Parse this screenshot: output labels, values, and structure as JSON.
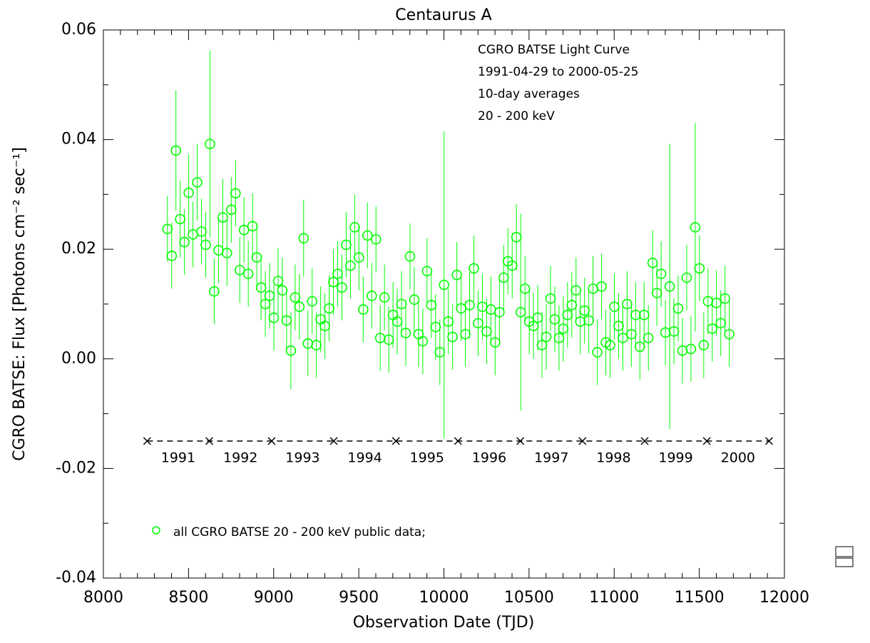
{
  "chart_data": {
    "type": "scatter",
    "title": "Centaurus A",
    "xlabel": "Observation Date (TJD)",
    "ylabel": "CGRO BATSE: Flux [Photons cm⁻² sec⁻¹]",
    "annotations": [
      "CGRO BATSE Light Curve",
      "1991-04-29 to 2000-05-25",
      "10-day averages",
      "20 - 200 keV"
    ],
    "xlim": [
      8000,
      12000
    ],
    "ylim": [
      -0.04,
      0.06
    ],
    "xticks": [
      8000,
      8500,
      9000,
      9500,
      10000,
      10500,
      11000,
      11500,
      12000
    ],
    "yticks": [
      -0.04,
      -0.02,
      {
        "value": 0,
        "label": "0.00"
      },
      0.02,
      0.04,
      0.06
    ],
    "xminorticks": [
      8100,
      8200,
      8300,
      8400,
      8600,
      8700,
      8800,
      8900,
      9100,
      9200,
      9300,
      9400,
      9600,
      9700,
      9800,
      9900,
      10100,
      10200,
      10300,
      10400,
      10600,
      10700,
      10800,
      10900,
      11100,
      11200,
      11300,
      11400,
      11600,
      11700,
      11800,
      11900
    ],
    "yminorticks": [
      -0.03,
      -0.01,
      0.01,
      0.03,
      0.05
    ],
    "year_level": -0.015,
    "year_boundaries": [
      8257,
      8622,
      8988,
      9353,
      9718,
      10083,
      10449,
      10814,
      11179,
      11544,
      11910
    ],
    "years": [
      "1991",
      "1992",
      "1993",
      "1994",
      "1995",
      "1996",
      "1997",
      "1998",
      "1999",
      "2000"
    ],
    "series": [
      {
        "name": "all CGRO BATSE 20 - 200 keV public data;",
        "color": "#00ff00",
        "x": [
          8376,
          8401,
          8426,
          8451,
          8476,
          8501,
          8526,
          8551,
          8576,
          8601,
          8626,
          8651,
          8676,
          8701,
          8726,
          8751,
          8776,
          8801,
          8826,
          8851,
          8876,
          8901,
          8926,
          8951,
          8976,
          9001,
          9026,
          9051,
          9076,
          9101,
          9126,
          9151,
          9176,
          9201,
          9226,
          9251,
          9276,
          9301,
          9326,
          9351,
          9376,
          9401,
          9426,
          9451,
          9476,
          9501,
          9526,
          9551,
          9576,
          9601,
          9626,
          9651,
          9676,
          9701,
          9726,
          9751,
          9776,
          9801,
          9826,
          9851,
          9876,
          9901,
          9926,
          9951,
          9976,
          10001,
          10026,
          10051,
          10076,
          10101,
          10126,
          10151,
          10176,
          10201,
          10226,
          10251,
          10276,
          10301,
          10326,
          10351,
          10376,
          10401,
          10426,
          10451,
          10476,
          10501,
          10526,
          10551,
          10576,
          10601,
          10626,
          10651,
          10676,
          10701,
          10726,
          10751,
          10776,
          10801,
          10826,
          10851,
          10876,
          10901,
          10926,
          10951,
          10976,
          11001,
          11026,
          11051,
          11076,
          11101,
          11126,
          11151,
          11176,
          11201,
          11226,
          11251,
          11276,
          11301,
          11326,
          11351,
          11376,
          11401,
          11426,
          11451,
          11476,
          11501,
          11526,
          11551,
          11576,
          11601,
          11626,
          11651,
          11676
        ],
        "values": [
          0.0237,
          0.0188,
          0.038,
          0.0255,
          0.0213,
          0.0303,
          0.0227,
          0.0322,
          0.0232,
          0.0208,
          0.0392,
          0.0123,
          0.0198,
          0.0258,
          0.0193,
          0.0272,
          0.0302,
          0.0162,
          0.0235,
          0.0155,
          0.0242,
          0.0185,
          0.013,
          0.01,
          0.0115,
          0.0075,
          0.0142,
          0.0125,
          0.007,
          0.0015,
          0.0112,
          0.0095,
          0.022,
          0.0028,
          0.0105,
          0.0025,
          0.0072,
          0.006,
          0.0092,
          0.014,
          0.0155,
          0.013,
          0.0208,
          0.017,
          0.024,
          0.0185,
          0.009,
          0.0225,
          0.0115,
          0.0218,
          0.0038,
          0.0112,
          0.0035,
          0.008,
          0.0068,
          0.01,
          0.0047,
          0.0187,
          0.0108,
          0.0045,
          0.0032,
          0.016,
          0.0098,
          0.0058,
          0.0012,
          0.0135,
          0.0068,
          0.004,
          0.0153,
          0.0092,
          0.0045,
          0.0098,
          0.0165,
          0.0065,
          0.0095,
          0.005,
          0.009,
          0.003,
          0.0085,
          0.0148,
          0.0178,
          0.017,
          0.0222,
          0.0085,
          0.0128,
          0.0068,
          0.006,
          0.0075,
          0.0025,
          0.004,
          0.011,
          0.0072,
          0.0038,
          0.0055,
          0.008,
          0.0098,
          0.0125,
          0.0068,
          0.0088,
          0.007,
          0.0128,
          0.0012,
          0.0132,
          0.003,
          0.0025,
          0.0095,
          0.006,
          0.0038,
          0.01,
          0.0045,
          0.008,
          0.0022,
          0.008,
          0.0038,
          0.0175,
          0.012,
          0.0155,
          0.0048,
          0.0132,
          0.005,
          0.0092,
          0.0015,
          0.0148,
          0.0018,
          0.024,
          0.0165,
          0.0025,
          0.0105,
          0.0055,
          0.0102,
          0.0065,
          0.011,
          0.0045
        ],
        "errors": [
          0.006,
          0.006,
          0.011,
          0.007,
          0.006,
          0.007,
          0.006,
          0.007,
          0.006,
          0.006,
          0.017,
          0.006,
          0.006,
          0.007,
          0.006,
          0.006,
          0.006,
          0.006,
          0.006,
          0.006,
          0.006,
          0.006,
          0.006,
          0.006,
          0.006,
          0.006,
          0.006,
          0.006,
          0.006,
          0.007,
          0.006,
          0.006,
          0.007,
          0.006,
          0.006,
          0.006,
          0.006,
          0.006,
          0.006,
          0.006,
          0.006,
          0.006,
          0.006,
          0.006,
          0.006,
          0.006,
          0.006,
          0.006,
          0.006,
          0.006,
          0.006,
          0.006,
          0.006,
          0.006,
          0.006,
          0.006,
          0.006,
          0.006,
          0.006,
          0.006,
          0.006,
          0.006,
          0.006,
          0.006,
          0.006,
          0.028,
          0.006,
          0.006,
          0.006,
          0.006,
          0.006,
          0.006,
          0.006,
          0.006,
          0.006,
          0.006,
          0.006,
          0.006,
          0.006,
          0.006,
          0.006,
          0.006,
          0.006,
          0.018,
          0.006,
          0.006,
          0.006,
          0.006,
          0.006,
          0.006,
          0.006,
          0.006,
          0.006,
          0.006,
          0.006,
          0.006,
          0.006,
          0.006,
          0.006,
          0.006,
          0.006,
          0.006,
          0.006,
          0.006,
          0.006,
          0.006,
          0.006,
          0.006,
          0.006,
          0.006,
          0.006,
          0.006,
          0.006,
          0.006,
          0.006,
          0.006,
          0.006,
          0.006,
          0.026,
          0.006,
          0.006,
          0.006,
          0.006,
          0.006,
          0.019,
          0.006,
          0.006,
          0.006,
          0.006,
          0.006,
          0.006,
          0.006,
          0.006
        ]
      }
    ]
  }
}
